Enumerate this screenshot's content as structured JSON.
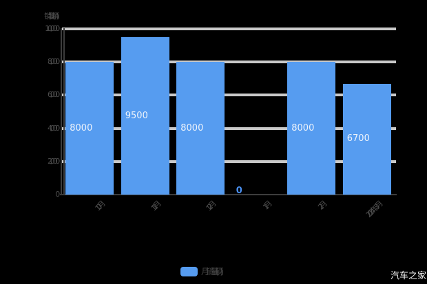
{
  "watermark": "汽车之家",
  "colors": {
    "background": "#000000",
    "bar": "#569CF0",
    "gridline": "#C9C9C9",
    "axis_line": "#3D3D3D",
    "axis_text": "#4D4D4D",
    "value_label": "#EDF3FB",
    "zero_label": "#4A90F2",
    "watermark_text": "#F5F5F5"
  },
  "chart_data": {
    "type": "bar",
    "title": "",
    "y_axis_title": "销量(辆)",
    "categories": [
      "10月",
      "11月",
      "12月",
      "1月",
      "2月",
      "2024年3月"
    ],
    "values": [
      8000,
      9500,
      8000,
      0,
      8000,
      6700
    ],
    "bar_labels": [
      "8000",
      "9500",
      "8000",
      "0",
      "8000",
      "6700"
    ],
    "xlabel": "",
    "ylabel": "销量(辆)",
    "ylim": [
      0,
      10000
    ],
    "y_tick_values": [
      0,
      2000,
      4000,
      6000,
      8000,
      10000
    ],
    "y_tick_labels": [
      "0",
      "2,000",
      "4,000",
      "6,000",
      "8,000",
      "10,000"
    ],
    "grid": true,
    "legend_position": "bottom",
    "legend": {
      "label": "月销量(辆)",
      "color": "#569CF0"
    }
  }
}
